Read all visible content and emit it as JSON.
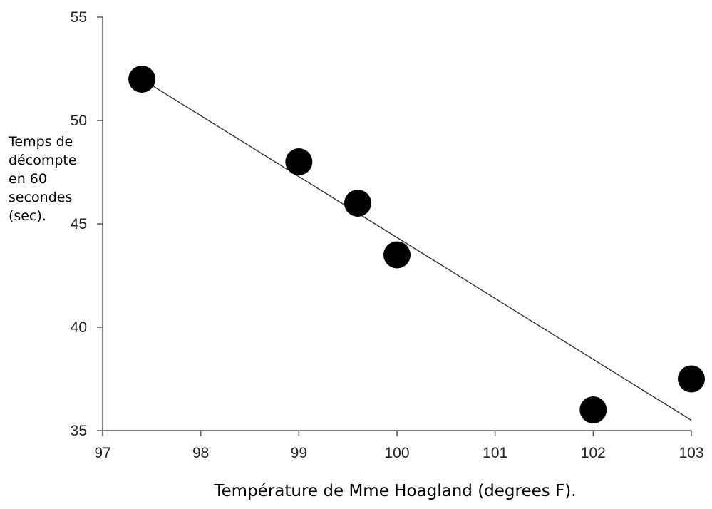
{
  "chart_data": {
    "type": "scatter",
    "xlabel": "Température de Mme Hoagland (degrees F).",
    "ylabel_lines": [
      "Temps de",
      "décompte",
      "en 60",
      "secondes",
      "(sec)."
    ],
    "xlim": [
      97,
      103
    ],
    "ylim": [
      35,
      55
    ],
    "x_ticks": [
      97,
      98,
      99,
      100,
      101,
      102,
      103
    ],
    "y_ticks": [
      35,
      40,
      45,
      50,
      55
    ],
    "grid": false,
    "series": [
      {
        "x": [
          97.4,
          99.0,
          99.6,
          100.0,
          102.0,
          103.0
        ],
        "y": [
          52.0,
          48.0,
          46.0,
          43.5,
          36.0,
          37.5
        ]
      }
    ],
    "trendline": {
      "x": [
        97.4,
        103.0
      ],
      "y": [
        52.0,
        35.5
      ]
    },
    "colors": {
      "points": "#000000",
      "axis": "#555555",
      "trendline": "#333333"
    }
  }
}
